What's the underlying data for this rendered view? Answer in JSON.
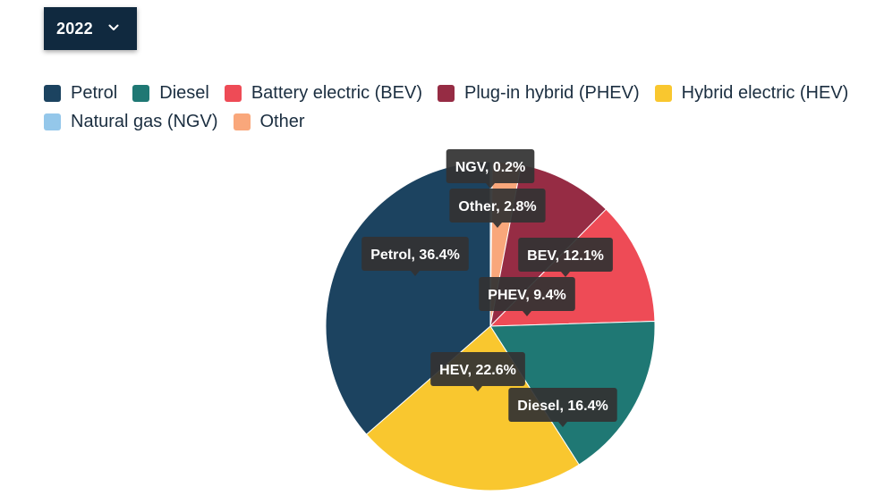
{
  "year_select": {
    "value": "2022",
    "icon": "chevron-down-icon"
  },
  "legend": {
    "items": [
      {
        "label": "Petrol",
        "color": "#1c4360"
      },
      {
        "label": "Diesel",
        "color": "#1f7874"
      },
      {
        "label": "Battery electric (BEV)",
        "color": "#ee4b56"
      },
      {
        "label": "Plug-in hybrid (PHEV)",
        "color": "#962c44"
      },
      {
        "label": "Hybrid electric (HEV)",
        "color": "#f9c72f"
      },
      {
        "label": "Natural gas (NGV)",
        "color": "#94c7ea"
      },
      {
        "label": "Other",
        "color": "#f9a77b"
      }
    ]
  },
  "chart_data": {
    "type": "pie",
    "slices": [
      {
        "name": "NGV",
        "value": 0.2,
        "label": "NGV, 0.2%",
        "color": "#94c7ea"
      },
      {
        "name": "Other",
        "value": 2.8,
        "label": "Other, 2.8%",
        "color": "#f9a77b"
      },
      {
        "name": "PHEV",
        "value": 9.4,
        "label": "PHEV, 9.4%",
        "color": "#962c44"
      },
      {
        "name": "BEV",
        "value": 12.1,
        "label": "BEV, 12.1%",
        "color": "#ee4b56"
      },
      {
        "name": "Diesel",
        "value": 16.4,
        "label": "Diesel, 16.4%",
        "color": "#1f7874"
      },
      {
        "name": "HEV",
        "value": 22.6,
        "label": "HEV, 22.6%",
        "color": "#f9c72f"
      },
      {
        "name": "Petrol",
        "value": 36.4,
        "label": "Petrol, 36.4%",
        "color": "#1c4360"
      }
    ],
    "start_angle_deg": 0,
    "direction": "clockwise",
    "legend_position": "top-left",
    "data_labels": "tooltip-style"
  }
}
